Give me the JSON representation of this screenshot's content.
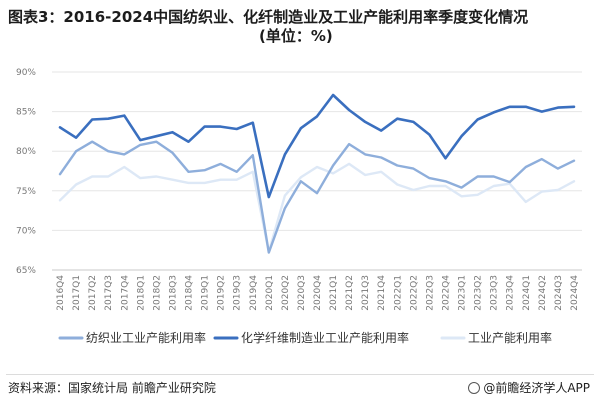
{
  "header": {
    "title": "图表3：2016-2024中国纺织业、化纤制造业及工业产能利用率季度变化情况",
    "subtitle": "(单位：%)"
  },
  "chart_data": {
    "type": "line",
    "categories": [
      "2016Q4",
      "2017Q1",
      "2017Q2",
      "2017Q3",
      "2017Q4",
      "2018Q1",
      "2018Q2",
      "2018Q3",
      "2018Q4",
      "2019Q1",
      "2019Q2",
      "2019Q3",
      "2019Q4",
      "2020Q1",
      "2020Q2",
      "2020Q3",
      "2020Q4",
      "2021Q1",
      "2021Q2",
      "2021Q3",
      "2021Q4",
      "2022Q1",
      "2022Q2",
      "2022Q3",
      "2022Q4",
      "2023Q1",
      "2023Q2",
      "2023Q3",
      "2023Q4",
      "2024Q1",
      "2024Q2",
      "2024Q3",
      "2024Q4"
    ],
    "series": [
      {
        "name": "纺织业工业产能利用率",
        "color": "#8eaedb",
        "values": [
          77.1,
          80.0,
          81.2,
          80.0,
          79.6,
          80.8,
          81.2,
          79.8,
          77.4,
          77.6,
          78.4,
          77.4,
          79.5,
          67.2,
          72.8,
          76.2,
          74.7,
          78.2,
          80.9,
          79.6,
          79.2,
          78.2,
          77.8,
          76.6,
          76.2,
          75.4,
          76.8,
          76.8,
          76.1,
          78.0,
          79.0,
          77.8,
          78.8
        ]
      },
      {
        "name": "化学纤维制造业工业产能利用率",
        "color": "#3a6fbf",
        "values": [
          83.0,
          81.7,
          84.0,
          84.1,
          84.5,
          81.4,
          81.9,
          82.4,
          81.2,
          83.1,
          83.1,
          82.8,
          83.6,
          74.2,
          79.6,
          82.9,
          84.4,
          87.1,
          85.2,
          83.7,
          82.6,
          84.1,
          83.7,
          82.1,
          79.1,
          81.9,
          84.0,
          84.9,
          85.6,
          85.6,
          85.0,
          85.5,
          85.6
        ]
      },
      {
        "name": "工业产能利用率",
        "color": "#dde8f6",
        "values": [
          73.8,
          75.8,
          76.8,
          76.8,
          78.0,
          76.6,
          76.8,
          76.4,
          76.0,
          76.0,
          76.4,
          76.4,
          77.4,
          67.3,
          74.4,
          76.7,
          78.0,
          77.2,
          78.4,
          77.0,
          77.4,
          75.8,
          75.1,
          75.6,
          75.6,
          74.3,
          74.5,
          75.6,
          75.9,
          73.6,
          74.9,
          75.1,
          76.2
        ]
      }
    ],
    "yticks": [
      "90%",
      "85%",
      "80%",
      "75%",
      "70%",
      "65%"
    ],
    "ylim": [
      65,
      90
    ],
    "grid": "horizontal"
  },
  "footer": {
    "source": "资料来源：国家统计局 前瞻产业研究院",
    "brand": "@前瞻经济学人APP"
  }
}
